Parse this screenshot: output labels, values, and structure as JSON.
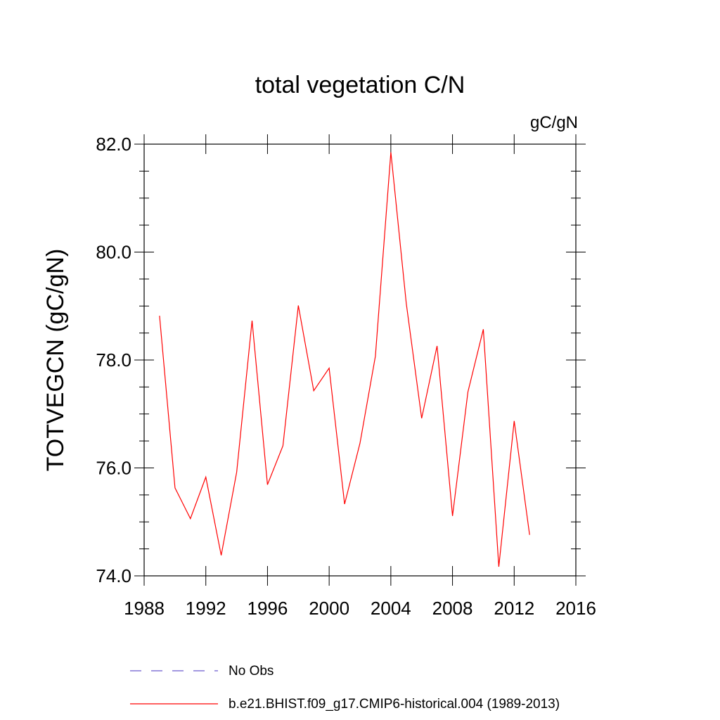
{
  "chart_data": {
    "type": "line",
    "title": "total vegetation C/N",
    "units": "gC/gN",
    "ylabel": "TOTVEGCN  (gC/gN)",
    "xlabel": "",
    "xlim": [
      1988,
      2016
    ],
    "ylim": [
      74.0,
      82.0
    ],
    "xticks": [
      1988,
      1992,
      1996,
      2000,
      2004,
      2008,
      2012,
      2016
    ],
    "xtick_labels": [
      "1988",
      "1992",
      "1996",
      "2000",
      "2004",
      "2008",
      "2012",
      "2016"
    ],
    "yticks": [
      74.0,
      76.0,
      78.0,
      80.0,
      82.0
    ],
    "ytick_labels": [
      "74.0",
      "76.0",
      "78.0",
      "80.0",
      "82.0"
    ],
    "grid": false,
    "legend_position": "bottom",
    "series": [
      {
        "name": "No Obs",
        "color": "#6a5acd",
        "dash": "dashed",
        "x": [],
        "values": []
      },
      {
        "name": "b.e21.BHIST.f09_g17.CMIP6-historical.004 (1989-2013)",
        "color": "#ff0000",
        "dash": "solid",
        "x": [
          1989,
          1990,
          1991,
          1992,
          1993,
          1994,
          1995,
          1996,
          1997,
          1998,
          1999,
          2000,
          2001,
          2002,
          2003,
          2004,
          2005,
          2006,
          2007,
          2008,
          2009,
          2010,
          2011,
          2012,
          2013
        ],
        "values": [
          78.82,
          75.63,
          75.06,
          75.83,
          74.38,
          75.92,
          78.73,
          75.69,
          76.41,
          79.01,
          77.43,
          77.85,
          75.33,
          76.46,
          78.07,
          81.85,
          79.05,
          76.92,
          78.26,
          75.11,
          77.41,
          78.57,
          74.17,
          76.87,
          74.76
        ]
      }
    ]
  }
}
